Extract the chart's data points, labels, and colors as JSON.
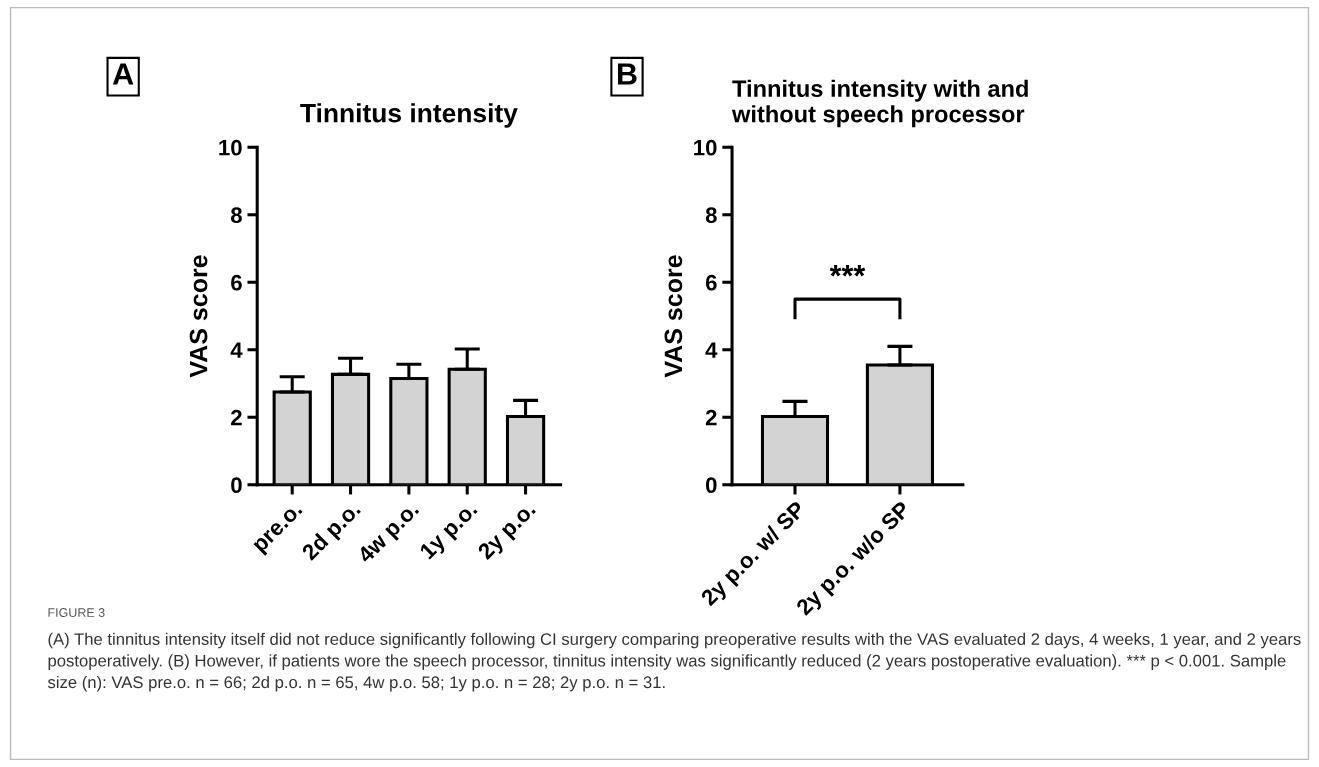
{
  "chart_data": [
    {
      "type": "bar",
      "title": "Tinnitus intensity",
      "ylabel": "VAS score",
      "categories": [
        "pre.o.",
        "2d p.o.",
        "4w p.o.",
        "1y p.o.",
        "2y p.o."
      ],
      "values": [
        2.75,
        3.27,
        3.15,
        3.42,
        2.02
      ],
      "errors": [
        [
          2.75,
          3.2
        ],
        [
          3.27,
          3.75
        ],
        [
          3.15,
          3.57
        ],
        [
          3.42,
          4.02
        ],
        [
          2.02,
          2.5
        ]
      ],
      "color": "#d3d3d3",
      "ylim": [
        0,
        10
      ],
      "yticks": [
        0,
        2,
        4,
        6,
        8,
        10
      ],
      "grid": false,
      "annotations": [
        "A",
        "FIGURE 3",
        "(A) The tinnitus intensity itself did not reduce significantly following CI surgery comparing preoperative results with the VAS evaluated 2 days, 4 weeks, 1 year, and 2 years postoperatively. (B) However, if patients wore the speech processor, tinnitus intensity was significantly reduced (2 years postoperative evaluation). *** p < 0.001. Sample size (n): VAS pre.o. n = 66; 2d p.o. n = 65, 4w p.o. 58; 1y p.o. n = 28; 2y p.o. n = 31."
      ]
    },
    {
      "type": "bar",
      "title": "Tinnitus intensity with and\nwithout speech processor",
      "ylabel": "VAS score",
      "categories": [
        "2y p.o. w/ SP",
        "2y p.o. w/o SP"
      ],
      "values": [
        2.02,
        3.55
      ],
      "errors": [
        [
          2.02,
          2.47
        ],
        [
          3.55,
          4.1
        ]
      ],
      "color": "#d3d3d3",
      "ylim": [
        0,
        10
      ],
      "yticks": [
        0,
        2,
        4,
        6,
        8,
        10
      ],
      "grid": false,
      "annotations": [
        "B",
        "***"
      ]
    }
  ]
}
